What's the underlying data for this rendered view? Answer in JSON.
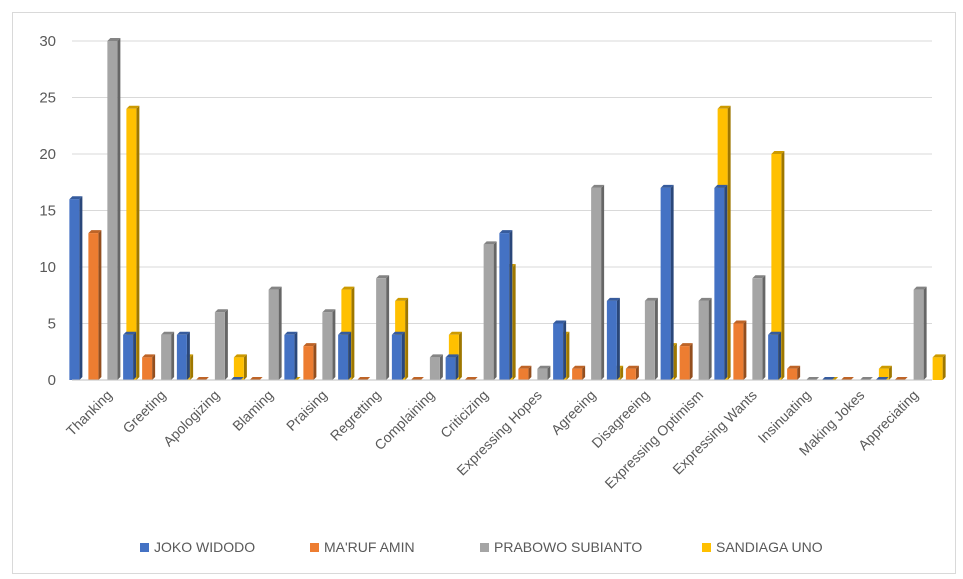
{
  "chart_data": {
    "type": "bar",
    "title": "",
    "xlabel": "",
    "ylabel": "",
    "ylim": [
      0,
      30
    ],
    "yticks": [
      "0",
      "5",
      "10",
      "15",
      "20",
      "25",
      "30"
    ],
    "grid": true,
    "legend_position": "bottom",
    "categories": [
      "Thanking",
      "Greeting",
      "Apologizing",
      "Blaming",
      "Praising",
      "Regretting",
      "Complaining",
      "Criticizing",
      "Expressing Hopes",
      "Agreeing",
      "Disagreeing",
      "Expressing Optimism",
      "Expressing Wants",
      "Insinuating",
      "Making Jokes",
      "Appreciating"
    ],
    "series": [
      {
        "name": "JOKO WIDODO",
        "color": "#4472c4",
        "values": [
          16,
          4,
          4,
          0,
          4,
          4,
          4,
          2,
          13,
          5,
          7,
          17,
          17,
          4,
          0,
          0
        ]
      },
      {
        "name": "MA'RUF AMIN",
        "color": "#ed7d31",
        "values": [
          13,
          2,
          0,
          0,
          3,
          0,
          0,
          0,
          1,
          1,
          1,
          3,
          5,
          1,
          0,
          0
        ]
      },
      {
        "name": "PRABOWO SUBIANTO",
        "color": "#a5a5a5",
        "values": [
          30,
          4,
          6,
          8,
          6,
          9,
          2,
          12,
          1,
          17,
          7,
          7,
          9,
          0,
          0,
          8
        ]
      },
      {
        "name": "SANDIAGA UNO",
        "color": "#ffc000",
        "values": [
          24,
          2,
          2,
          0,
          8,
          7,
          4,
          10,
          4,
          1,
          3,
          24,
          20,
          0,
          1,
          2
        ]
      }
    ]
  }
}
